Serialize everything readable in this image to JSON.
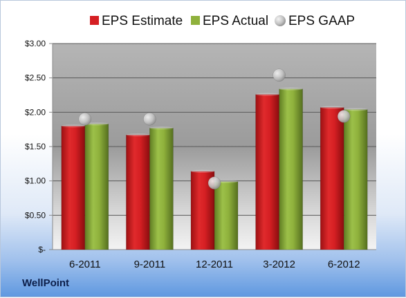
{
  "brand": "WellPoint",
  "colors": {
    "estimate": "#d51f23",
    "actual": "#8fb13c",
    "gaap": "#c4c4c4"
  },
  "chart_data": {
    "type": "bar",
    "categories": [
      "6-2011",
      "9-2011",
      "12-2011",
      "3-2012",
      "6-2012"
    ],
    "series": [
      {
        "name": "EPS Estimate",
        "kind": "bar",
        "values": [
          1.8,
          1.67,
          1.14,
          2.26,
          2.07
        ]
      },
      {
        "name": "EPS Actual",
        "kind": "bar",
        "values": [
          1.83,
          1.77,
          0.99,
          2.34,
          2.04
        ]
      },
      {
        "name": "EPS GAAP",
        "kind": "scatter",
        "values": [
          1.9,
          1.9,
          0.97,
          2.54,
          1.94
        ]
      }
    ],
    "yticks": [
      "$-",
      "$0.50",
      "$1.00",
      "$1.50",
      "$2.00",
      "$2.50",
      "$3.00"
    ],
    "ylim": [
      0,
      3.0
    ],
    "legend_position": "top",
    "grid": true
  }
}
